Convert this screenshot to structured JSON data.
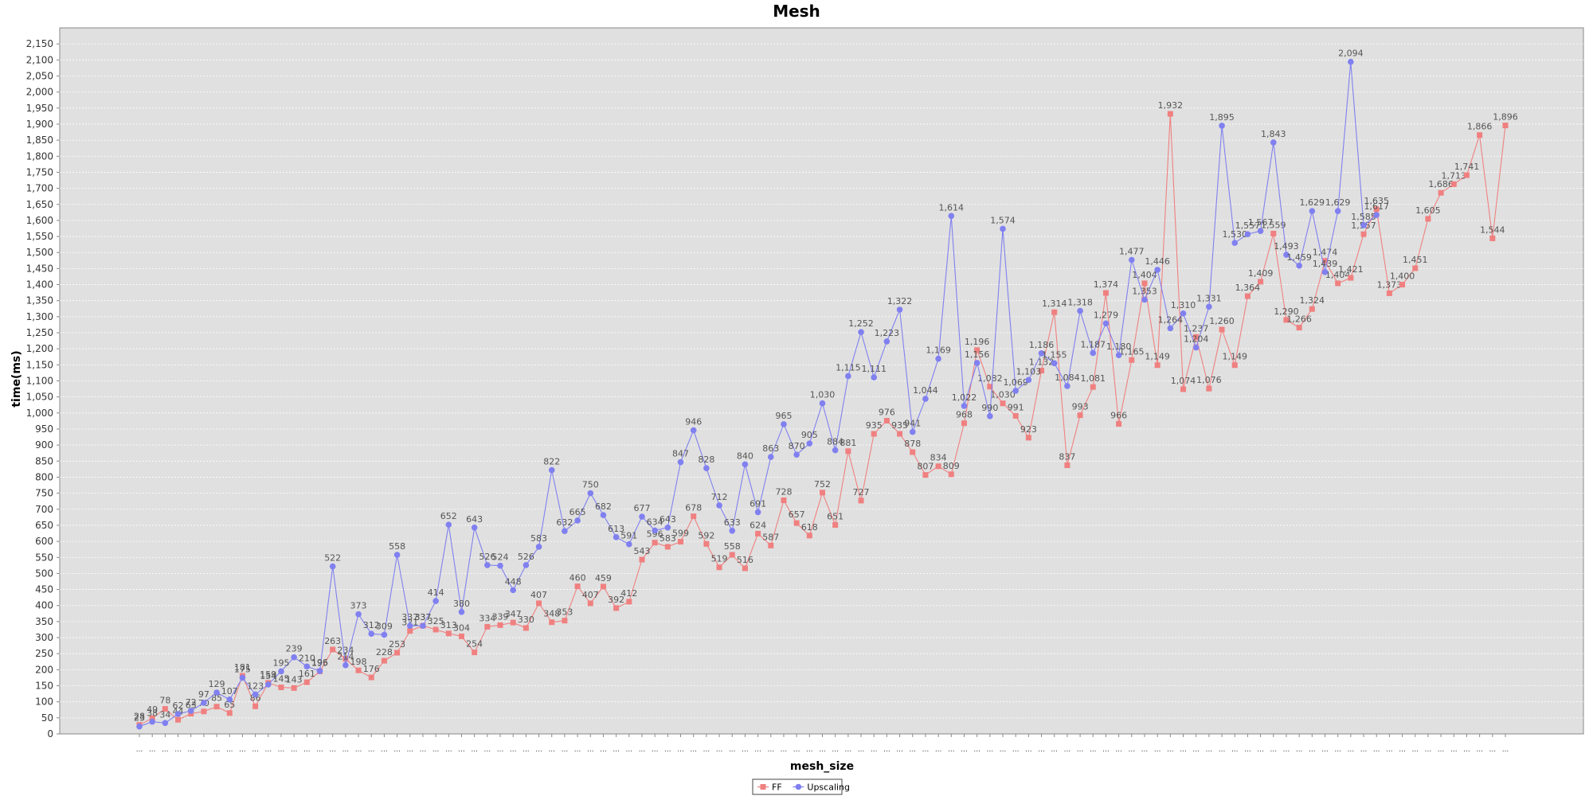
{
  "chart_data": {
    "type": "line",
    "title": "Mesh",
    "xlabel": "mesh_size",
    "ylabel": "time(ms)",
    "ylim": [
      0,
      2200
    ],
    "ytick_step": 50,
    "grid": true,
    "legend_position": "bottom",
    "x_tick_label": "...",
    "series": [
      {
        "name": "FF",
        "color": "#f08080",
        "marker": "square",
        "values": [
          28,
          49,
          78,
          44,
          63,
          70,
          85,
          65,
          181,
          86,
          159,
          145,
          143,
          161,
          195,
          263,
          234,
          198,
          176,
          228,
          253,
          321,
          337,
          325,
          313,
          304,
          254,
          334,
          339,
          347,
          330,
          407,
          348,
          353,
          460,
          407,
          459,
          392,
          412,
          543,
          596,
          583,
          599,
          678,
          592,
          519,
          558,
          516,
          624,
          587,
          728,
          657,
          618,
          752,
          651,
          881,
          727,
          935,
          976,
          935,
          878,
          807,
          834,
          809,
          968,
          1196,
          1082,
          1030,
          991,
          923,
          1132,
          1314,
          837,
          993,
          1081,
          1374,
          966,
          1165,
          1404,
          1149,
          1932,
          1074,
          1237,
          1076,
          1260,
          1149,
          1364,
          1409,
          1559,
          1290,
          1266,
          1324,
          1474,
          1404,
          1421,
          1557,
          1635,
          1373,
          1400,
          1451,
          1605,
          1686,
          1713,
          1741,
          1866,
          1544,
          1896
        ]
      },
      {
        "name": "Upscaling",
        "color": "#8080f0",
        "marker": "circle",
        "values": [
          23,
          38,
          34,
          62,
          72,
          97,
          129,
          107,
          175,
          123,
          154,
          195,
          239,
          210,
          196,
          522,
          214,
          373,
          312,
          309,
          558,
          337,
          337,
          414,
          652,
          380,
          643,
          526,
          524,
          448,
          526,
          583,
          822,
          632,
          665,
          750,
          682,
          613,
          591,
          677,
          634,
          643,
          847,
          946,
          828,
          712,
          633,
          840,
          691,
          863,
          965,
          870,
          905,
          1030,
          884,
          1115,
          1252,
          1111,
          1223,
          1322,
          941,
          1044,
          1169,
          1614,
          1022,
          1156,
          990,
          1574,
          1069,
          1103,
          1186,
          1155,
          1084,
          1318,
          1187,
          1279,
          1180,
          1477,
          1353,
          1446,
          1264,
          1310,
          1204,
          1331,
          1895,
          1530,
          1557,
          1567,
          1843,
          1493,
          1459,
          1629,
          1439,
          1629,
          2094,
          1585,
          1617
        ]
      }
    ]
  }
}
